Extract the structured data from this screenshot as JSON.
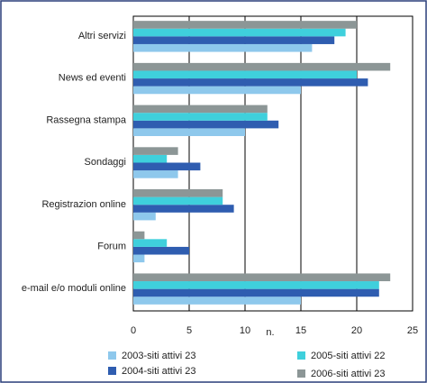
{
  "chart_data": {
    "type": "bar",
    "orientation": "horizontal",
    "categories": [
      "Altri servizi",
      "News ed eventi",
      "Rassegna stampa",
      "Sondaggi",
      "Registrazion online",
      "Forum",
      "e-mail e/o moduli online"
    ],
    "series": [
      {
        "name": "2003-siti attivi 23",
        "color": "#8ec8ec",
        "values": [
          16,
          15,
          10,
          4,
          2,
          1,
          15
        ]
      },
      {
        "name": "2004-siti attivi 23",
        "color": "#2f5db0",
        "values": [
          18,
          21,
          13,
          6,
          9,
          5,
          22
        ]
      },
      {
        "name": "2005-siti attivi 22",
        "color": "#3fd0dc",
        "values": [
          19,
          20,
          12,
          3,
          8,
          3,
          22
        ]
      },
      {
        "name": "2006-siti attivi 23",
        "color": "#8c9696",
        "values": [
          20,
          23,
          12,
          4,
          8,
          1,
          23
        ]
      }
    ],
    "xlabel": "n.",
    "xlim": [
      0,
      25
    ],
    "xticks": [
      0,
      5,
      10,
      15,
      20,
      25
    ],
    "grid": true
  }
}
